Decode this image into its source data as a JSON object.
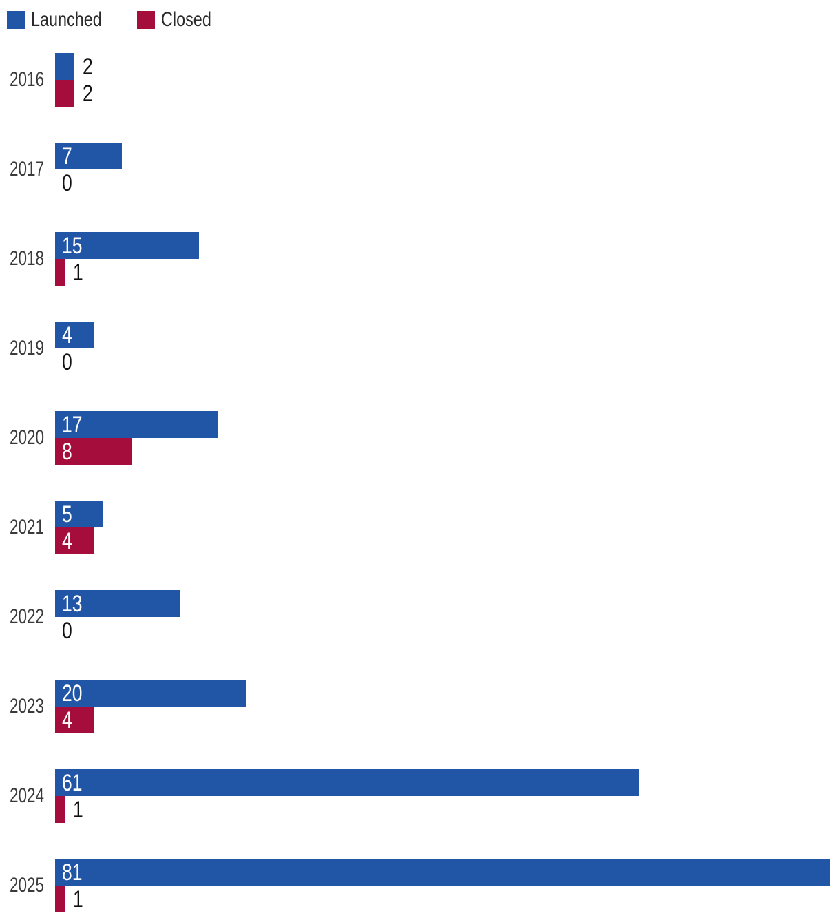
{
  "legend": {
    "launched_label": "Launched",
    "closed_label": "Closed"
  },
  "colors": {
    "launched": "#2156A6",
    "closed": "#A50E3C",
    "year_label": "#3A3A3A",
    "legend_text": "#2B2B2B",
    "value_inside": "#FFFFFF",
    "value_outside": "#111111",
    "background": "#FFFFFF"
  },
  "chart_data": {
    "type": "bar",
    "orientation": "horizontal",
    "title": "",
    "xlabel": "",
    "ylabel": "",
    "categories": [
      "2016",
      "2017",
      "2018",
      "2019",
      "2020",
      "2021",
      "2022",
      "2023",
      "2024",
      "2025"
    ],
    "series": [
      {
        "name": "Launched",
        "color": "#2156A6",
        "values": [
          2,
          7,
          15,
          4,
          17,
          5,
          13,
          20,
          61,
          81
        ]
      },
      {
        "name": "Closed",
        "color": "#A50E3C",
        "values": [
          2,
          0,
          1,
          0,
          8,
          4,
          0,
          4,
          1,
          1
        ]
      }
    ],
    "xlim": [
      0,
      81
    ],
    "grid": "off",
    "axes_visible": false,
    "value_labels": "on",
    "value_label_placement": "inside-start, outside-end when bar too short",
    "legend_position": "top-left"
  }
}
